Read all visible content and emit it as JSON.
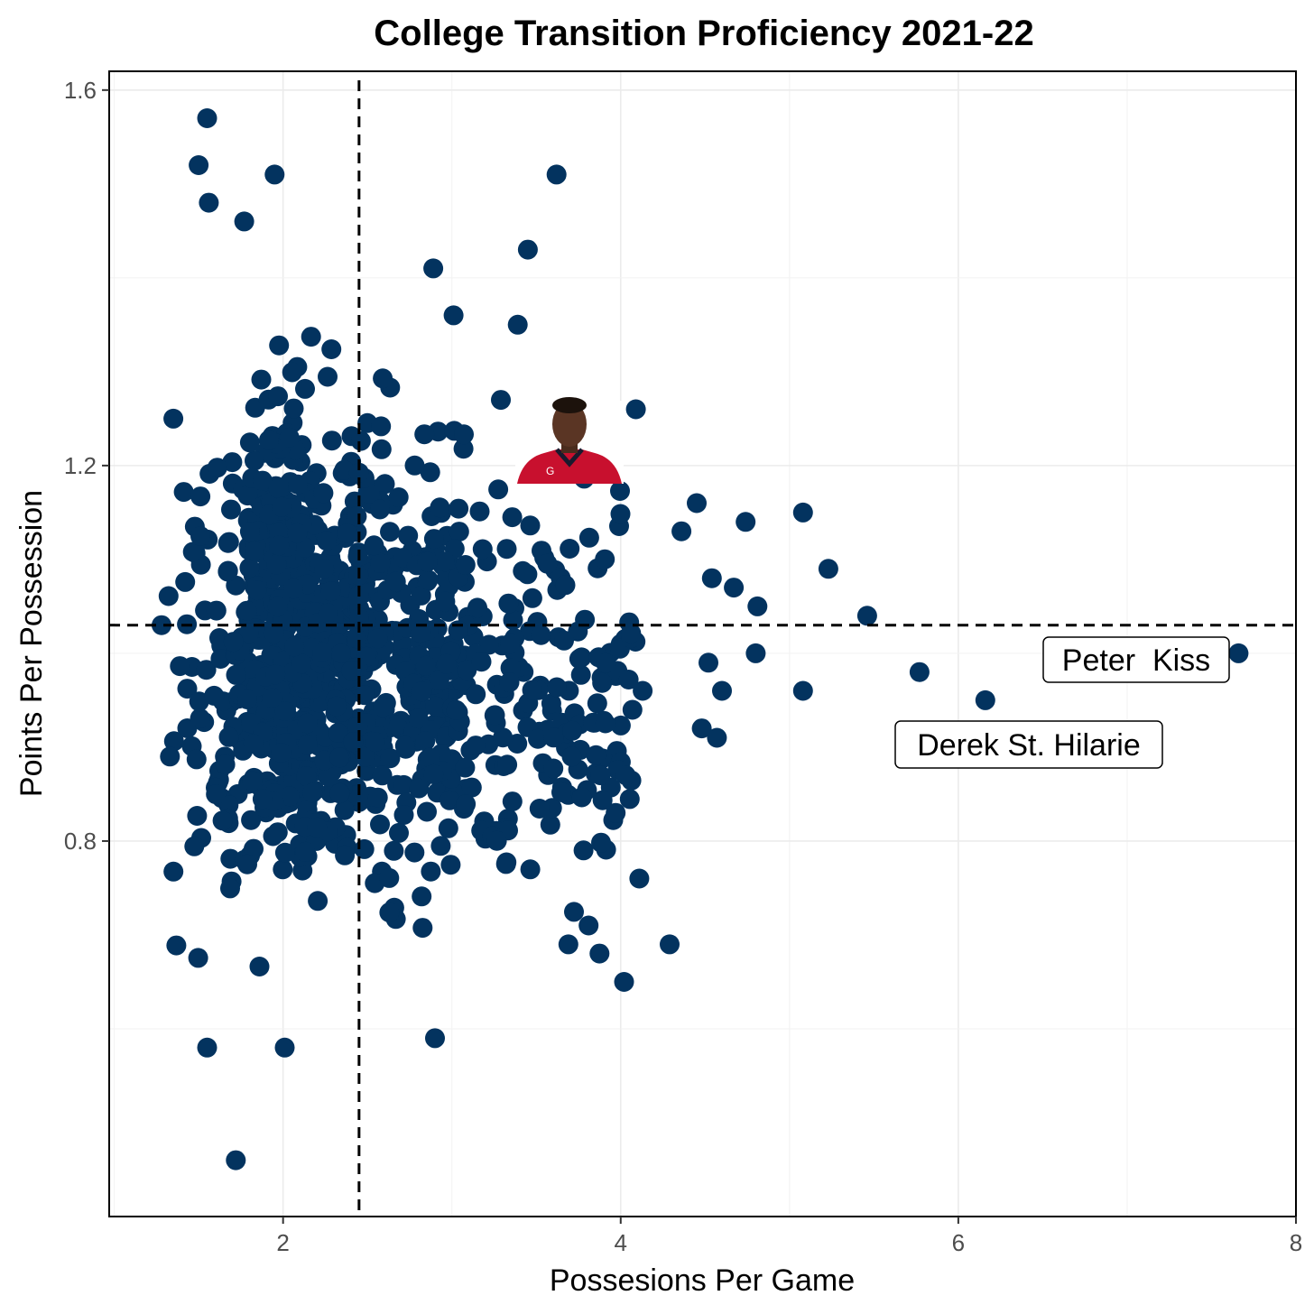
{
  "chart_data": {
    "type": "scatter",
    "title": "College Transition Proficiency 2021-22",
    "xlabel": "Possesions Per Game",
    "ylabel": "Points Per Possession",
    "xlim": [
      0.97,
      8.0
    ],
    "ylim": [
      0.4,
      1.62
    ],
    "x_ticks": [
      2,
      4,
      6,
      8
    ],
    "x_tick_labels": [
      "2",
      "4",
      "6",
      "8"
    ],
    "y_ticks": [
      0.8,
      1.2,
      1.6
    ],
    "y_tick_labels": [
      "0.8",
      "1.2",
      "1.6"
    ],
    "grid": true,
    "point_color": "#03335f",
    "reference_lines": {
      "x": 2.45,
      "y": 1.03,
      "style": "dashed"
    },
    "labels": [
      {
        "text": "Peter  Kiss",
        "x": 7.7,
        "y": 1.0
      },
      {
        "text": "Derek St. Hilarie",
        "x": 6.15,
        "y": 0.95
      }
    ],
    "player_image": {
      "x": 3.75,
      "y": 1.22,
      "description": "player headshot"
    },
    "highlighted_points": [
      {
        "x": 7.66,
        "y": 1.0
      },
      {
        "x": 6.16,
        "y": 0.95
      },
      {
        "x": 5.77,
        "y": 0.98
      },
      {
        "x": 5.46,
        "y": 1.04
      },
      {
        "x": 5.23,
        "y": 1.09
      },
      {
        "x": 5.08,
        "y": 1.15
      },
      {
        "x": 5.08,
        "y": 0.96
      },
      {
        "x": 4.81,
        "y": 1.05
      },
      {
        "x": 4.74,
        "y": 1.14
      },
      {
        "x": 4.8,
        "y": 1.0
      },
      {
        "x": 4.45,
        "y": 1.16
      },
      {
        "x": 4.36,
        "y": 1.13
      },
      {
        "x": 4.67,
        "y": 1.07
      },
      {
        "x": 4.54,
        "y": 1.08
      },
      {
        "x": 4.6,
        "y": 0.96
      },
      {
        "x": 4.57,
        "y": 0.91
      },
      {
        "x": 4.52,
        "y": 0.99
      },
      {
        "x": 4.48,
        "y": 0.92
      },
      {
        "x": 4.09,
        "y": 1.26
      },
      {
        "x": 3.62,
        "y": 1.51
      },
      {
        "x": 3.45,
        "y": 1.43
      },
      {
        "x": 3.39,
        "y": 1.35
      },
      {
        "x": 3.29,
        "y": 1.27
      },
      {
        "x": 3.01,
        "y": 1.36
      },
      {
        "x": 2.89,
        "y": 1.41
      },
      {
        "x": 1.95,
        "y": 1.51
      },
      {
        "x": 1.55,
        "y": 1.57
      },
      {
        "x": 1.5,
        "y": 1.52
      },
      {
        "x": 1.56,
        "y": 1.48
      },
      {
        "x": 1.77,
        "y": 1.46
      },
      {
        "x": 1.72,
        "y": 0.46
      },
      {
        "x": 2.9,
        "y": 0.59
      },
      {
        "x": 1.55,
        "y": 0.58
      },
      {
        "x": 2.01,
        "y": 0.58
      },
      {
        "x": 4.02,
        "y": 0.65
      },
      {
        "x": 3.69,
        "y": 0.69
      },
      {
        "x": 4.29,
        "y": 0.69
      },
      {
        "x": 3.81,
        "y": 0.71
      },
      {
        "x": 4.11,
        "y": 0.76
      },
      {
        "x": 3.97,
        "y": 0.83
      },
      {
        "x": 3.78,
        "y": 0.79
      },
      {
        "x": 3.71,
        "y": 0.89
      },
      {
        "x": 3.88,
        "y": 0.87
      },
      {
        "x": 4.03,
        "y": 0.87
      },
      {
        "x": 4.13,
        "y": 0.96
      },
      {
        "x": 1.33,
        "y": 0.89
      },
      {
        "x": 1.28,
        "y": 1.03
      },
      {
        "x": 1.35,
        "y": 1.25
      }
    ],
    "cluster_note": "approximately 900 additional points concentrated between x 1.3-3.6 and y 0.7-1.35"
  }
}
